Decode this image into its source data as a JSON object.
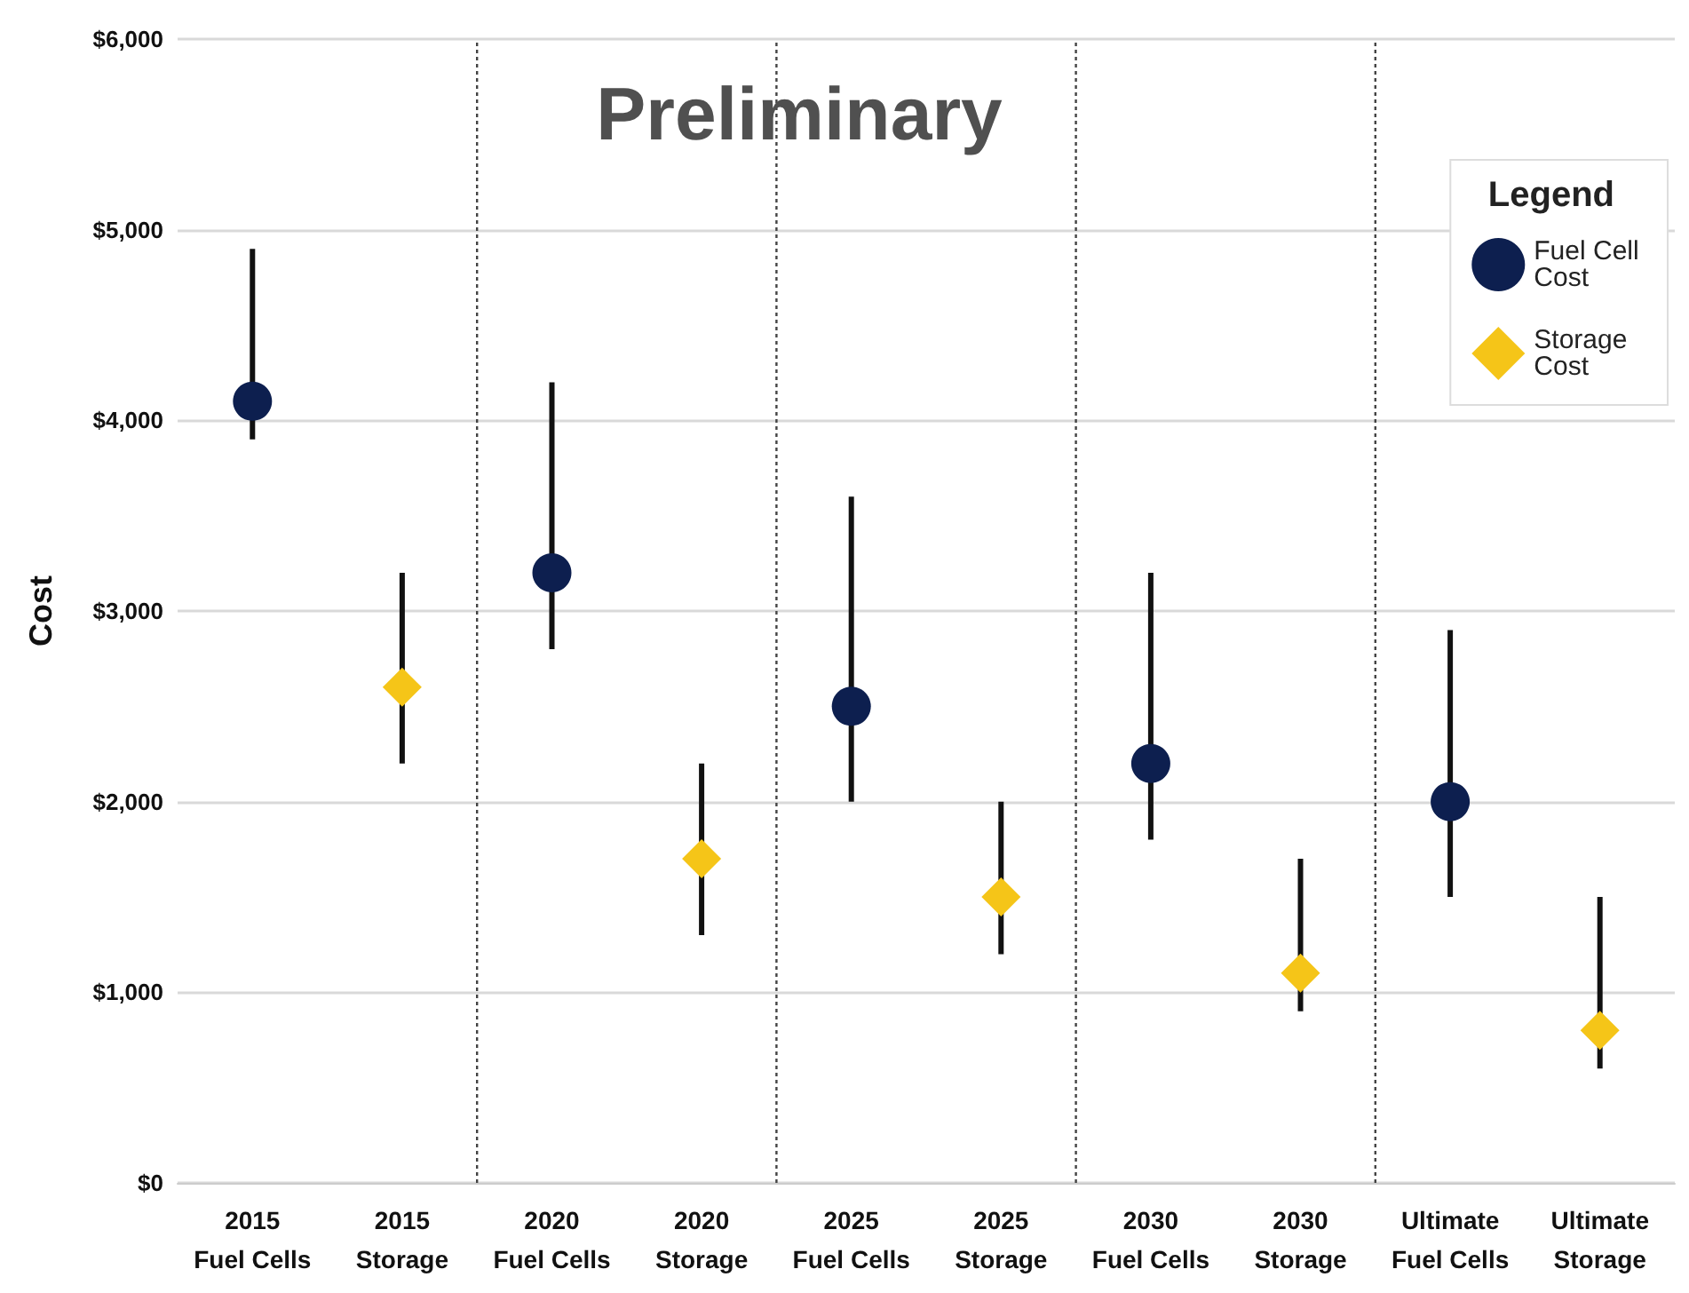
{
  "chart_data": {
    "type": "scatter",
    "title": "Preliminary",
    "ylabel": "Cost",
    "legend_title": "Legend",
    "categories": [
      "2015 Fuel Cells",
      "2015 Storage",
      "2020 Fuel Cells",
      "2020 Storage",
      "2025 Fuel Cells",
      "2025 Storage",
      "2030 Fuel Cells",
      "2030 Storage",
      "Ultimate Fuel Cells",
      "Ultimate Storage"
    ],
    "series": [
      {
        "name": "Fuel Cell Cost",
        "color": "#0d1f4f",
        "marker": "circle",
        "values": [
          4100,
          null,
          3200,
          null,
          2500,
          null,
          2200,
          null,
          2000,
          null
        ],
        "errors": [
          [
            3900,
            4900
          ],
          null,
          [
            2800,
            4200
          ],
          null,
          [
            2000,
            3600
          ],
          null,
          [
            1800,
            3200
          ],
          null,
          [
            1500,
            2900
          ],
          null
        ]
      },
      {
        "name": "Storage Cost",
        "color": "#f5c518",
        "marker": "diamond",
        "values": [
          null,
          2600,
          null,
          1700,
          null,
          1500,
          null,
          1100,
          null,
          800
        ],
        "errors": [
          null,
          [
            2200,
            3200
          ],
          null,
          [
            1300,
            2200
          ],
          null,
          [
            1200,
            2000
          ],
          null,
          [
            900,
            1700
          ],
          null,
          [
            600,
            1500
          ]
        ]
      }
    ],
    "ylim": [
      0,
      6000
    ],
    "yticks": [
      {
        "value": 0,
        "label": "$0"
      },
      {
        "value": 1000,
        "label": "$1,000"
      },
      {
        "value": 2000,
        "label": "$2,000"
      },
      {
        "value": 3000,
        "label": "$3,000"
      },
      {
        "value": 4000,
        "label": "$4,000"
      },
      {
        "value": 5000,
        "label": "$5,000"
      },
      {
        "value": 6000,
        "label": "$6,000"
      }
    ],
    "grid": "y",
    "legend": "top right"
  }
}
